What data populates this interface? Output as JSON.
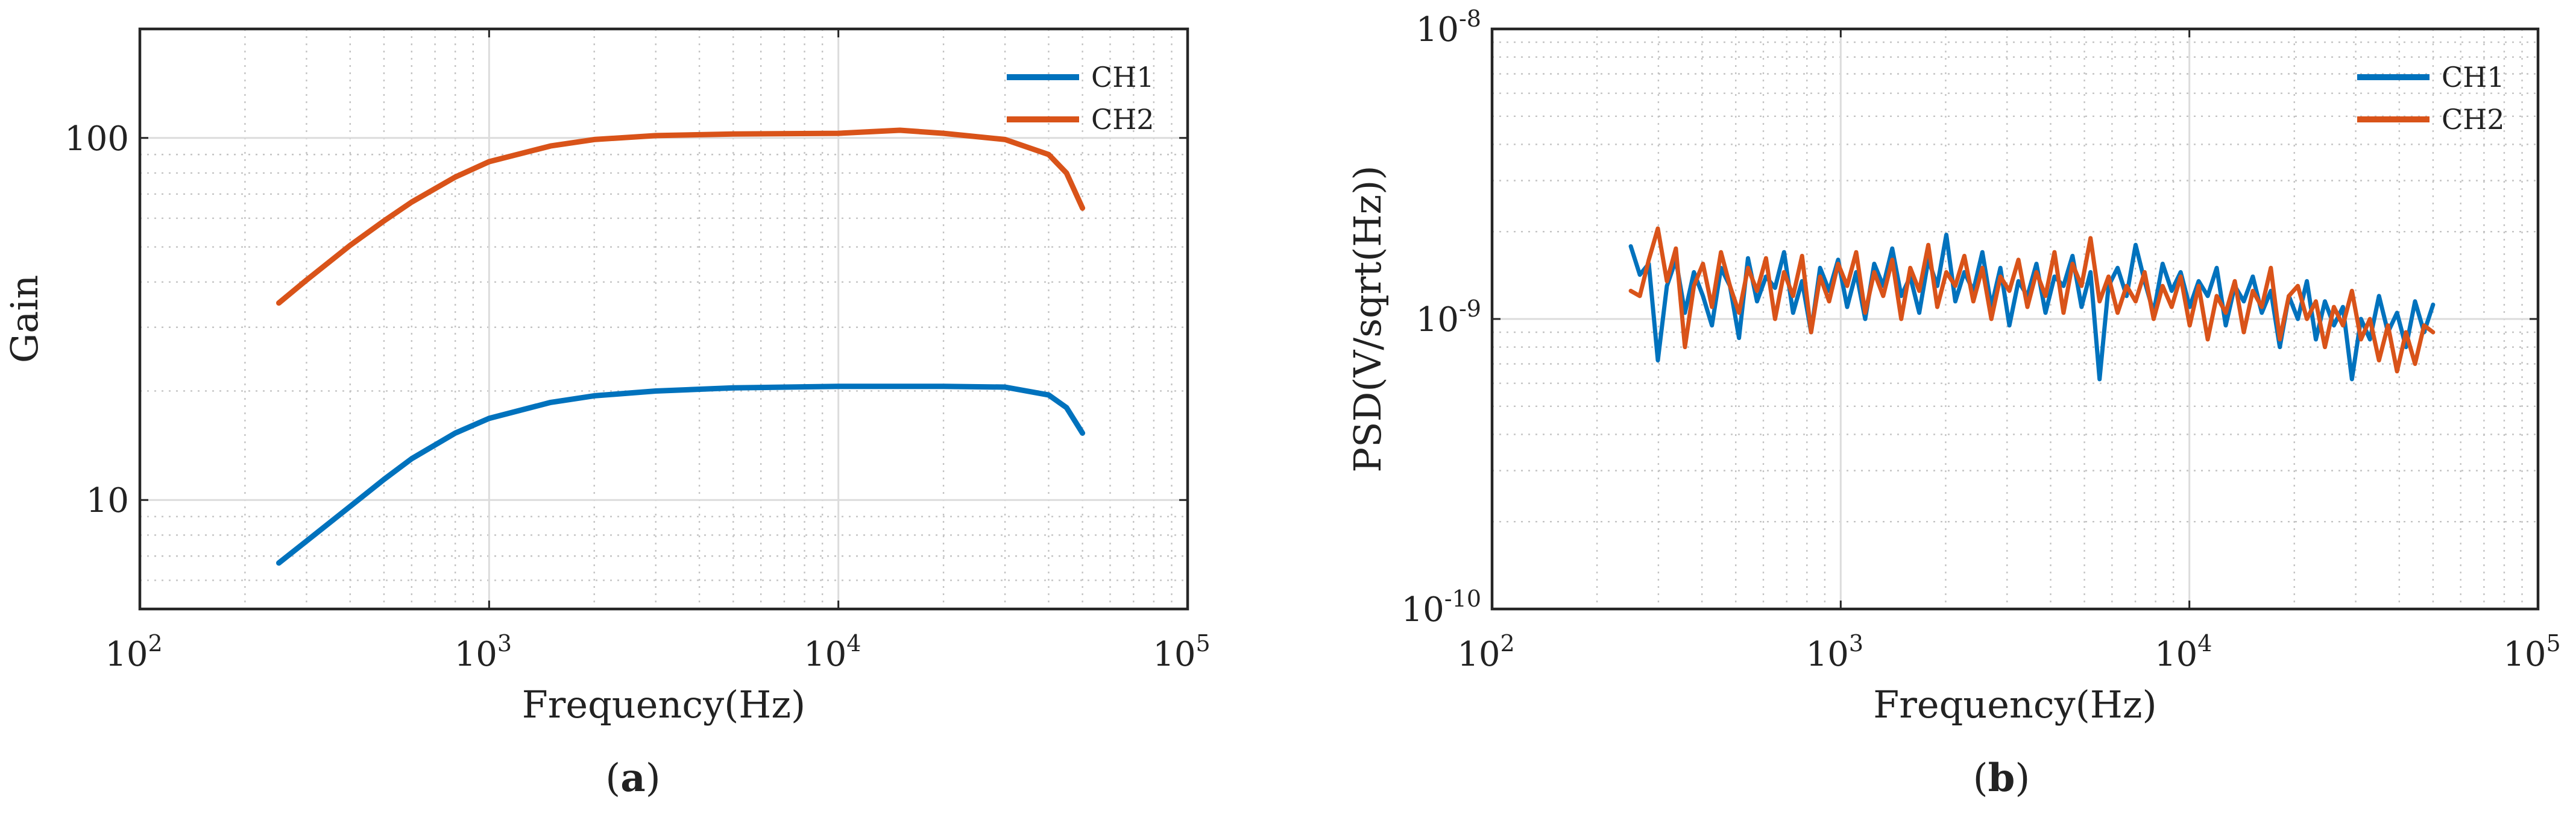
{
  "chart_data": [
    {
      "id": "a",
      "type": "line",
      "caption": "a",
      "xlabel": "Frequency(Hz)",
      "ylabel": "Gain",
      "xscale": "log",
      "yscale": "log",
      "xlim": [
        100,
        100000
      ],
      "ylim": [
        5,
        200
      ],
      "x_ticks": [
        {
          "value": 100,
          "base": "10",
          "exp": "2"
        },
        {
          "value": 1000,
          "base": "10",
          "exp": "3"
        },
        {
          "value": 10000,
          "base": "10",
          "exp": "4"
        },
        {
          "value": 100000,
          "base": "10",
          "exp": "5"
        }
      ],
      "y_ticks": [
        {
          "value": 10,
          "label": "10"
        },
        {
          "value": 100,
          "label": "100"
        }
      ],
      "grid": true,
      "legend_position": "top-right",
      "series": [
        {
          "name": "CH1",
          "color": "#0072BD",
          "x": [
            250,
            300,
            400,
            500,
            600,
            800,
            1000,
            1500,
            2000,
            3000,
            5000,
            10000,
            20000,
            30000,
            40000,
            45000,
            50000
          ],
          "y": [
            6.7,
            7.7,
            9.6,
            11.4,
            13.0,
            15.3,
            16.8,
            18.6,
            19.4,
            20.0,
            20.4,
            20.6,
            20.6,
            20.5,
            19.5,
            18.0,
            15.3
          ]
        },
        {
          "name": "CH2",
          "color": "#D95319",
          "x": [
            250,
            300,
            400,
            500,
            600,
            800,
            1000,
            1500,
            2000,
            3000,
            5000,
            10000,
            15000,
            20000,
            30000,
            40000,
            45000,
            50000
          ],
          "y": [
            35,
            40.5,
            50.5,
            59,
            66.5,
            78,
            86,
            95,
            99,
            101.5,
            102.5,
            103,
            105,
            103,
            99,
            90,
            80,
            64
          ]
        }
      ]
    },
    {
      "id": "b",
      "type": "line",
      "caption": "b",
      "xlabel": "Frequency(Hz)",
      "ylabel": "PSD(V/sqrt(Hz))",
      "xscale": "log",
      "yscale": "log",
      "xlim": [
        100,
        100000
      ],
      "ylim": [
        1e-10,
        1e-08
      ],
      "x_ticks": [
        {
          "value": 100,
          "base": "10",
          "exp": "2"
        },
        {
          "value": 1000,
          "base": "10",
          "exp": "3"
        },
        {
          "value": 10000,
          "base": "10",
          "exp": "4"
        },
        {
          "value": 100000,
          "base": "10",
          "exp": "5"
        }
      ],
      "y_ticks": [
        {
          "value": 1e-10,
          "base": "10",
          "exp": "-10"
        },
        {
          "value": 1e-09,
          "base": "10",
          "exp": "-9"
        },
        {
          "value": 1e-08,
          "base": "10",
          "exp": "-8"
        }
      ],
      "grid": true,
      "legend_position": "top-right",
      "series": [
        {
          "name": "CH1",
          "color": "#0072BD",
          "x_range": [
            250,
            50000
          ],
          "y": [
            1.78e-09,
            1.42e-09,
            1.55e-09,
            7.2e-10,
            1.3e-09,
            1.6e-09,
            1.05e-09,
            1.45e-09,
            1.2e-09,
            9.5e-10,
            1.5e-09,
            1.3e-09,
            8.6e-10,
            1.62e-09,
            1.15e-09,
            1.4e-09,
            1.28e-09,
            1.7e-09,
            1.05e-09,
            1.35e-09,
            9e-10,
            1.5e-09,
            1.25e-09,
            1.6e-09,
            1.1e-09,
            1.45e-09,
            1e-09,
            1.55e-09,
            1.3e-09,
            1.75e-09,
            1.2e-09,
            1.4e-09,
            1.05e-09,
            1.6e-09,
            1.3e-09,
            1.95e-09,
            1.15e-09,
            1.45e-09,
            1.25e-09,
            1.7e-09,
            1.1e-09,
            1.5e-09,
            9.5e-10,
            1.35e-09,
            1.2e-09,
            1.55e-09,
            1.05e-09,
            1.4e-09,
            1.3e-09,
            1.65e-09,
            1.1e-09,
            1.45e-09,
            6.2e-10,
            1.3e-09,
            1.5e-09,
            1.2e-09,
            1.8e-09,
            1.35e-09,
            1.05e-09,
            1.55e-09,
            1.25e-09,
            1.45e-09,
            1.1e-09,
            1.35e-09,
            1.2e-09,
            1.5e-09,
            9.5e-10,
            1.3e-09,
            1.15e-09,
            1.4e-09,
            1.05e-09,
            1.25e-09,
            8e-10,
            1.2e-09,
            1e-09,
            1.35e-09,
            8.5e-10,
            1.15e-09,
            9.5e-10,
            1.1e-09,
            6.2e-10,
            1e-09,
            8.5e-10,
            1.2e-09,
            9e-10,
            1.05e-09,
            8e-10,
            1.15e-09,
            9e-10,
            1.12e-09
          ]
        },
        {
          "name": "CH2",
          "color": "#D95319",
          "x_range": [
            250,
            50000
          ],
          "y": [
            1.25e-09,
            1.2e-09,
            1.6e-09,
            2.05e-09,
            1.35e-09,
            1.75e-09,
            8e-10,
            1.3e-09,
            1.55e-09,
            1.1e-09,
            1.7e-09,
            1.3e-09,
            1.05e-09,
            1.5e-09,
            1.25e-09,
            1.62e-09,
            1e-09,
            1.45e-09,
            1.2e-09,
            1.65e-09,
            9e-10,
            1.4e-09,
            1.15e-09,
            1.55e-09,
            1.3e-09,
            1.7e-09,
            1.05e-09,
            1.45e-09,
            1.2e-09,
            1.6e-09,
            1e-09,
            1.5e-09,
            1.25e-09,
            1.8e-09,
            1.1e-09,
            1.45e-09,
            1.3e-09,
            1.65e-09,
            1.15e-09,
            1.5e-09,
            1e-09,
            1.4e-09,
            1.25e-09,
            1.6e-09,
            1.1e-09,
            1.45e-09,
            1.2e-09,
            1.7e-09,
            1.05e-09,
            1.55e-09,
            1.3e-09,
            1.9e-09,
            1.15e-09,
            1.4e-09,
            1.05e-09,
            1.3e-09,
            1.15e-09,
            1.45e-09,
            1e-09,
            1.3e-09,
            1.1e-09,
            1.4e-09,
            9.5e-10,
            1.3e-09,
            8.5e-10,
            1.2e-09,
            1.05e-09,
            1.35e-09,
            9e-10,
            1.25e-09,
            1.1e-09,
            1.5e-09,
            8.5e-10,
            1.2e-09,
            1.3e-09,
            1e-09,
            1.15e-09,
            8e-10,
            1.1e-09,
            9.5e-10,
            1.25e-09,
            8.5e-10,
            1e-09,
            7.2e-10,
            9.5e-10,
            6.6e-10,
            9e-10,
            7e-10,
            9.5e-10,
            9e-10
          ]
        }
      ]
    }
  ]
}
